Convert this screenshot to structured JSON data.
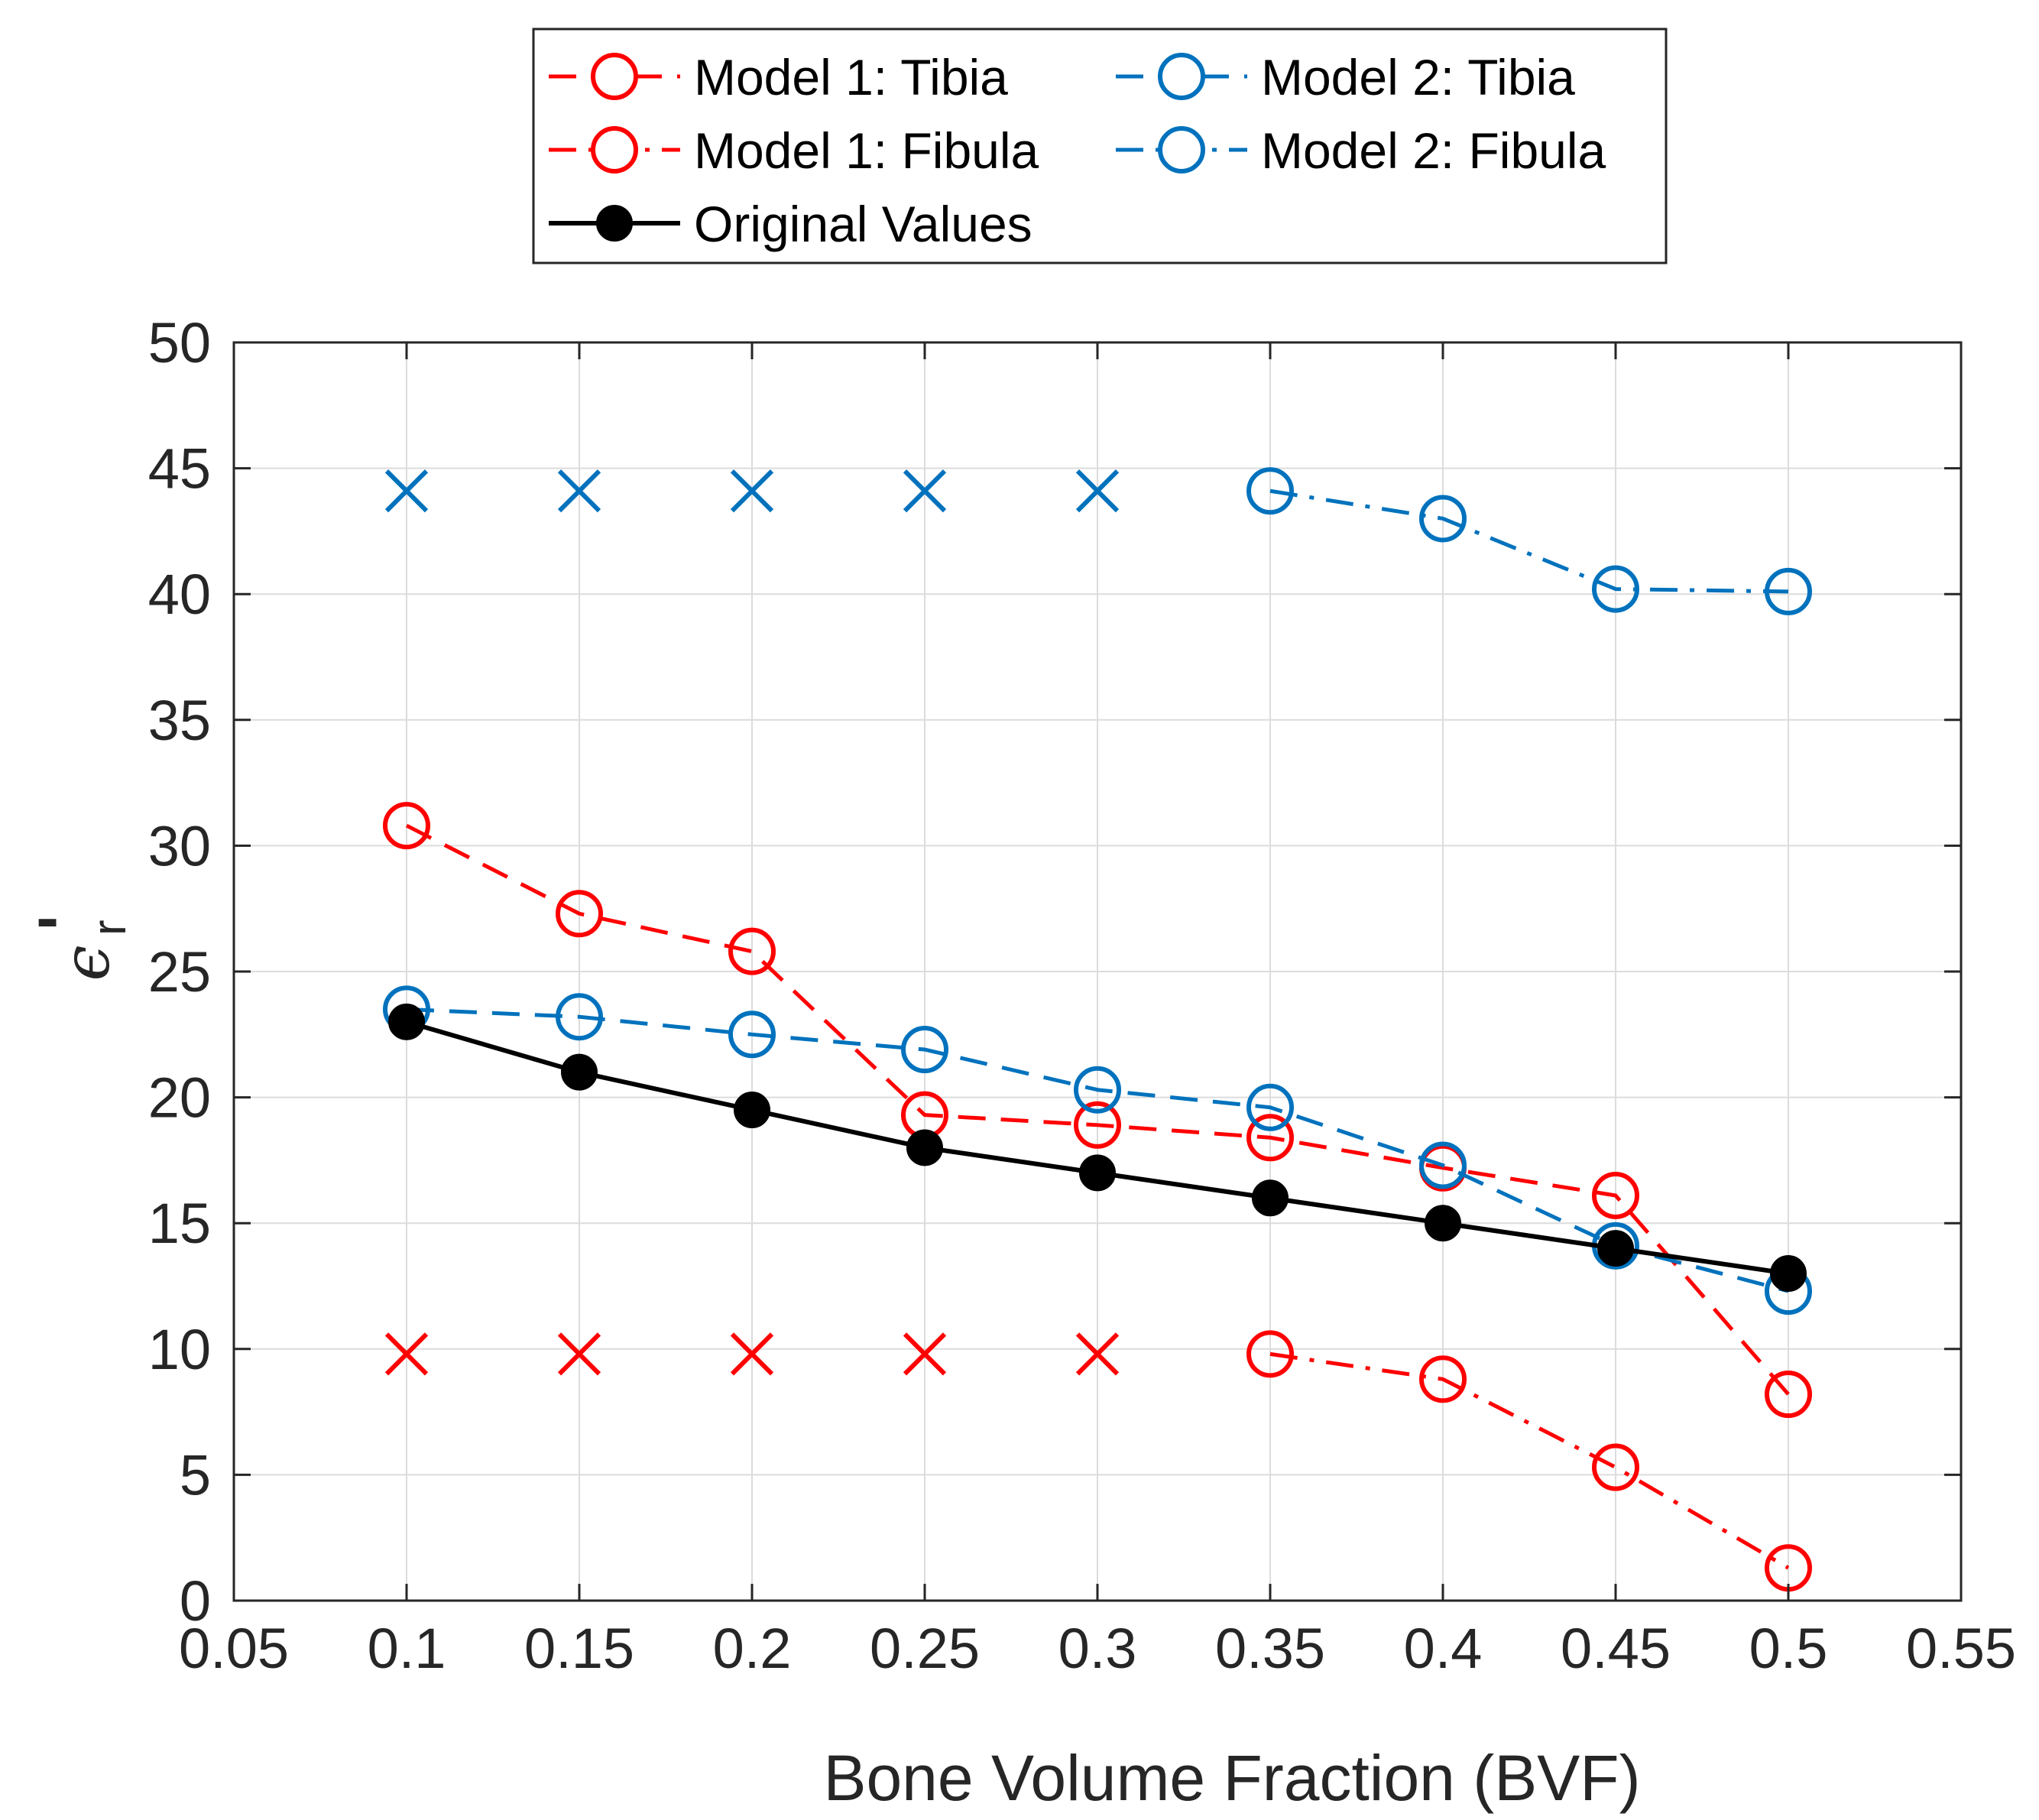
{
  "chart_data": {
    "type": "line",
    "title": "",
    "xlabel": "Bone Volume Fraction (BVF)",
    "ylabel": "ϵ'r",
    "ylabel_parts": {
      "main": "ϵ",
      "sup": "'",
      "sub": "r"
    },
    "xlim": [
      0.05,
      0.55
    ],
    "ylim": [
      0,
      50
    ],
    "grid": true,
    "legend_placement": "top-center-outside",
    "x_tick_labels": [
      "0.05",
      "0.1",
      "0.15",
      "0.2",
      "0.25",
      "0.3",
      "0.35",
      "0.4",
      "0.45",
      "0.5",
      "0.55"
    ],
    "y_tick_labels": [
      "0",
      "5",
      "10",
      "15",
      "20",
      "25",
      "30",
      "35",
      "40",
      "45",
      "50"
    ],
    "x": [
      0.1,
      0.15,
      0.2,
      0.25,
      0.3,
      0.35,
      0.4,
      0.45,
      0.5
    ],
    "series": [
      {
        "name": "Model 1: Tibia",
        "color": "#ff0000",
        "line": "dashed",
        "marker": "circle-open",
        "values": [
          30.8,
          27.3,
          25.8,
          19.3,
          18.9,
          18.4,
          17.2,
          16.1,
          8.2
        ]
      },
      {
        "name": "Model 1: Fibula",
        "color": "#ff0000",
        "line": "dashdot",
        "marker": "circle-open",
        "values": [
          9.8,
          9.8,
          9.8,
          9.8,
          9.8,
          9.8,
          8.8,
          5.3,
          1.3
        ],
        "cross_points": [
          0.1,
          0.15,
          0.2,
          0.25,
          0.3
        ]
      },
      {
        "name": "Model 2: Tibia",
        "color": "#0072bd",
        "line": "dashed",
        "marker": "circle-open",
        "values": [
          23.5,
          23.2,
          22.5,
          21.9,
          20.3,
          19.6,
          17.3,
          14.1,
          12.3
        ]
      },
      {
        "name": "Model 2: Fibula",
        "color": "#0072bd",
        "line": "dashdot",
        "marker": "circle-open",
        "values": [
          44.1,
          44.1,
          44.1,
          44.1,
          44.1,
          44.1,
          43.0,
          40.2,
          40.1
        ],
        "cross_points": [
          0.1,
          0.15,
          0.2,
          0.25,
          0.3
        ]
      },
      {
        "name": "Original Values",
        "color": "#000000",
        "line": "solid",
        "marker": "circle-filled",
        "values": [
          23,
          21,
          19.5,
          18,
          17,
          16,
          15,
          14,
          13
        ]
      }
    ],
    "legend_order": [
      "Model 1: Tibia",
      "Model 2: Tibia",
      "Model 1: Fibula",
      "Model 2: Fibula",
      "Original Values"
    ]
  }
}
